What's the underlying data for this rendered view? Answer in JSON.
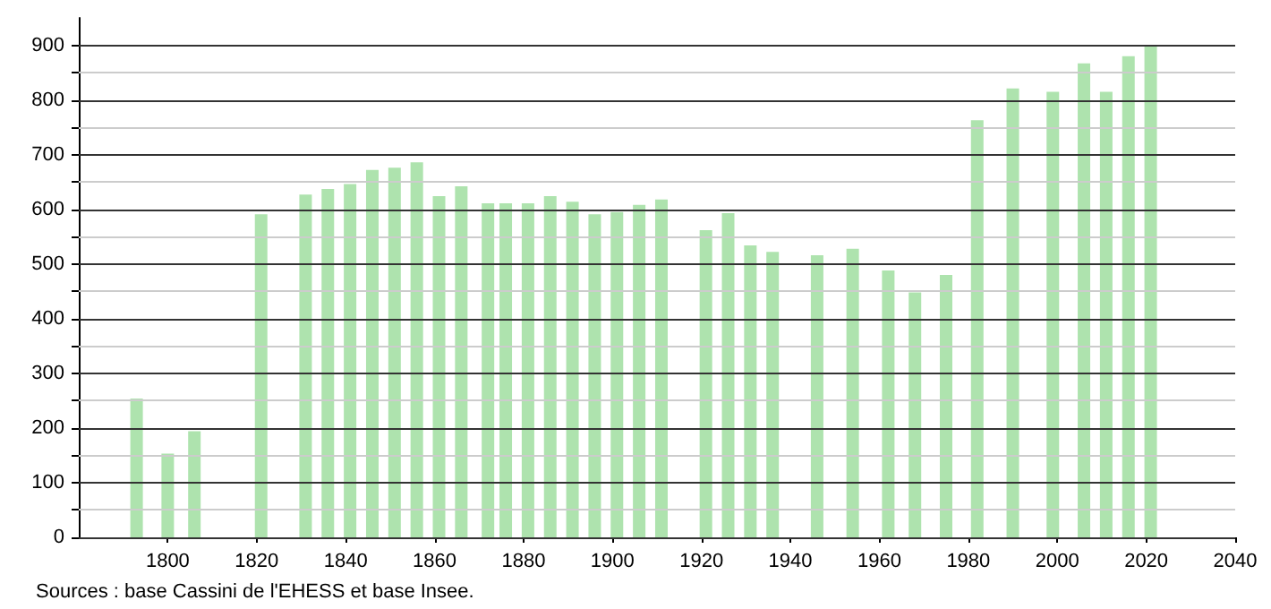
{
  "chart_data": {
    "type": "bar",
    "x": [
      1793,
      1800,
      1806,
      1821,
      1831,
      1836,
      1841,
      1846,
      1851,
      1856,
      1861,
      1866,
      1872,
      1876,
      1881,
      1886,
      1891,
      1896,
      1901,
      1906,
      1911,
      1921,
      1926,
      1931,
      1936,
      1946,
      1954,
      1962,
      1968,
      1975,
      1982,
      1990,
      1999,
      2006,
      2011,
      2016,
      2021
    ],
    "values": [
      254,
      153,
      194,
      591,
      627,
      637,
      646,
      672,
      676,
      686,
      624,
      642,
      611,
      611,
      611,
      624,
      614,
      591,
      595,
      608,
      618,
      562,
      593,
      534,
      522,
      516,
      528,
      488,
      448,
      480,
      763,
      821,
      815,
      867,
      815,
      880,
      900
    ],
    "color": "#aee3ae",
    "xlim": [
      1780,
      2040
    ],
    "xticks": [
      1800,
      1820,
      1840,
      1860,
      1880,
      1900,
      1920,
      1940,
      1960,
      1980,
      2000,
      2020,
      2040
    ],
    "ylim": [
      0,
      950
    ],
    "yticks": [
      0,
      {
        "value": 50,
        "label": null
      },
      100,
      {
        "value": 150,
        "label": null
      },
      200,
      {
        "value": 250,
        "label": null
      },
      300,
      {
        "value": 350,
        "label": null
      },
      400,
      {
        "value": 450,
        "label": null
      },
      500,
      {
        "value": 550,
        "label": null
      },
      600,
      {
        "value": 650,
        "label": null
      },
      700,
      {
        "value": 750,
        "label": null
      },
      800,
      {
        "value": 850,
        "label": null
      },
      900
    ],
    "grid": "y",
    "annotations": [
      "Sources : base Cassini de l'EHESS et base Insee."
    ]
  }
}
